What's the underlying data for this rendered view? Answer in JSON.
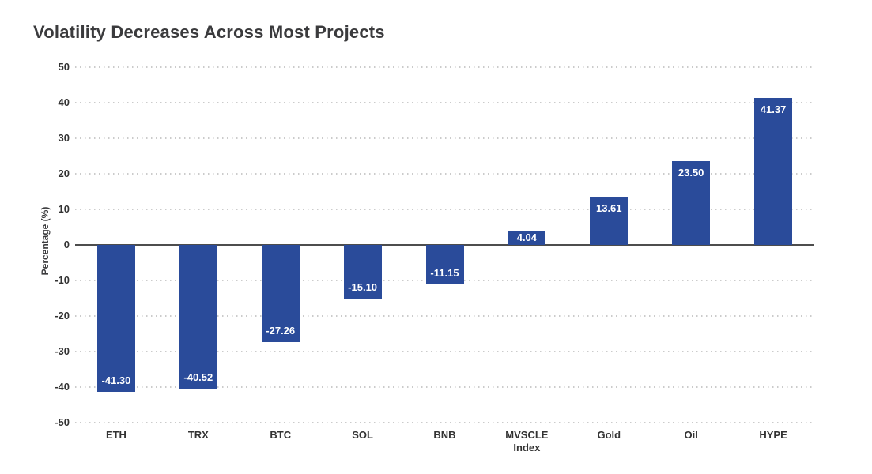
{
  "chart_data": {
    "type": "bar",
    "title": "Volatility Decreases Across Most Projects",
    "xlabel": "",
    "ylabel": "Percentage (%)",
    "categories": [
      "ETH",
      "TRX",
      "BTC",
      "SOL",
      "BNB",
      "MVSCLE Index",
      "Gold",
      "Oil",
      "HYPE"
    ],
    "values": [
      -41.3,
      -40.52,
      -27.26,
      -15.1,
      -11.15,
      4.04,
      13.61,
      23.5,
      41.37
    ],
    "value_labels": [
      "-41.30",
      "-40.52",
      "-27.26",
      "-15.10",
      "-11.15",
      "4.04",
      "13.61",
      "23.50",
      "41.37"
    ],
    "ylim": [
      -50,
      50
    ],
    "yticks": [
      50,
      40,
      30,
      20,
      10,
      0,
      -10,
      -20,
      -30,
      -40,
      -50
    ],
    "grid": "horizontal dotted",
    "legend": "none",
    "bar_color": "#2A4B9A",
    "value_label_color": "#ffffff",
    "axis_line_color": "#4d4d4d",
    "gridline_color": "#cbcbcb",
    "title_color": "#3b3b3d",
    "tick_label_color": "#333333",
    "background_color": "#ffffff"
  }
}
